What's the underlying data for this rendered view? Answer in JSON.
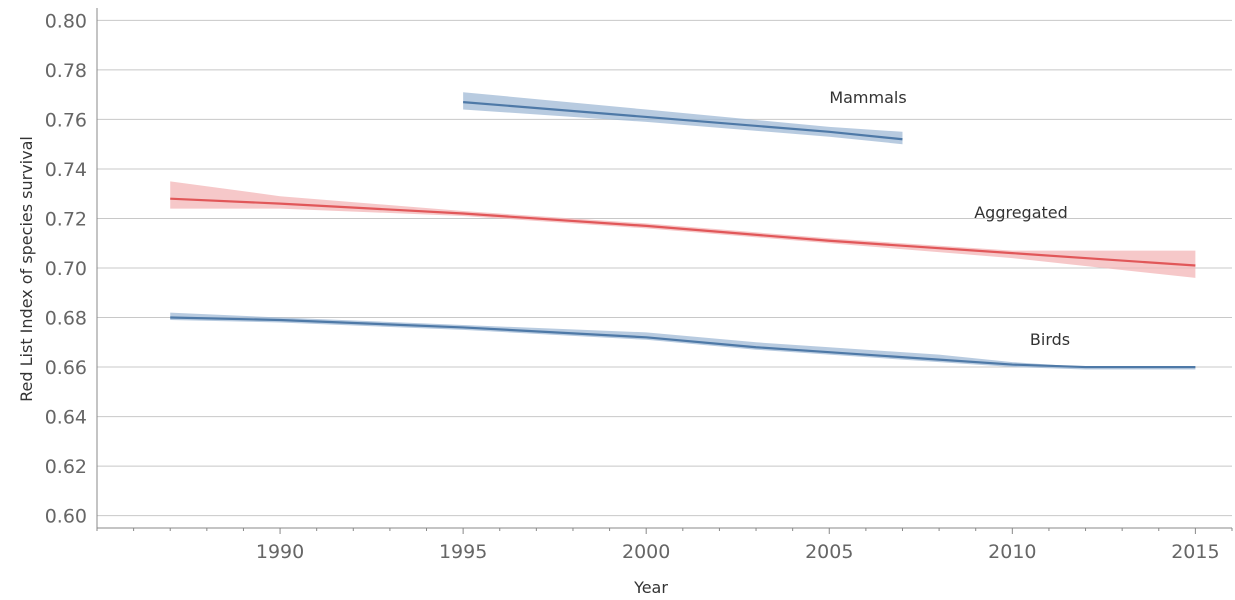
{
  "chart_data": {
    "type": "line",
    "xlabel": "Year",
    "ylabel": "Red List Index of species survival",
    "xlim": [
      1985,
      2016
    ],
    "ylim": [
      0.595,
      0.805
    ],
    "x_ticks": [
      1990,
      1995,
      2000,
      2005,
      2010,
      2015
    ],
    "y_ticks": [
      "0.60",
      "0.62",
      "0.64",
      "0.66",
      "0.68",
      "0.70",
      "0.72",
      "0.74",
      "0.76",
      "0.78",
      "0.80"
    ],
    "grid": true,
    "legend": "none",
    "series": [
      {
        "name": "Mammals",
        "color": "#4e79a7",
        "band_color": "#a0b9d6",
        "x": [
          1995,
          2000,
          2005,
          2007
        ],
        "y": [
          0.767,
          0.761,
          0.755,
          0.752
        ],
        "lower": [
          0.764,
          0.759,
          0.753,
          0.75
        ],
        "upper": [
          0.771,
          0.764,
          0.757,
          0.755
        ]
      },
      {
        "name": "Aggregated",
        "color": "#e15759",
        "band_color": "#f3b6b7",
        "x": [
          1987,
          1990,
          1995,
          2000,
          2005,
          2010,
          2015
        ],
        "y": [
          0.728,
          0.726,
          0.722,
          0.717,
          0.711,
          0.706,
          0.701
        ],
        "lower": [
          0.724,
          0.724,
          0.721,
          0.716,
          0.71,
          0.704,
          0.696
        ],
        "upper": [
          0.735,
          0.729,
          0.723,
          0.718,
          0.712,
          0.707,
          0.707
        ]
      },
      {
        "name": "Birds",
        "color": "#4e79a7",
        "band_color": "#a0b9d6",
        "x": [
          1987,
          1990,
          1995,
          2000,
          2003,
          2005,
          2008,
          2010,
          2012,
          2015
        ],
        "y": [
          0.68,
          0.679,
          0.676,
          0.672,
          0.668,
          0.666,
          0.663,
          0.661,
          0.66,
          0.66
        ],
        "lower": [
          0.679,
          0.678,
          0.675,
          0.671,
          0.667,
          0.665,
          0.662,
          0.66,
          0.659,
          0.659
        ],
        "upper": [
          0.682,
          0.68,
          0.677,
          0.674,
          0.67,
          0.668,
          0.665,
          0.662,
          0.66,
          0.66
        ]
      }
    ]
  }
}
